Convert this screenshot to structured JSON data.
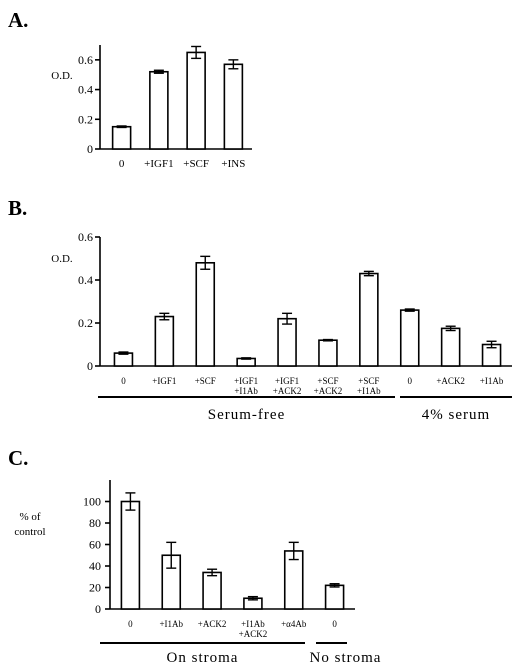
{
  "chart_data": [
    {
      "panel": "A.",
      "type": "bar",
      "ylabel": "O.D.",
      "ylim": [
        0,
        0.7
      ],
      "yticks": [
        "0",
        "0.2",
        "0.4",
        "0.6"
      ],
      "categories": [
        [
          "0"
        ],
        [
          "+IGF1"
        ],
        [
          "+SCF"
        ],
        [
          "+INS"
        ]
      ],
      "values": [
        0.15,
        0.52,
        0.65,
        0.57
      ],
      "errors": [
        0.005,
        0.01,
        0.04,
        0.03
      ],
      "groups": []
    },
    {
      "panel": "B.",
      "type": "bar",
      "ylabel": "O.D.",
      "ylim": [
        0,
        0.6
      ],
      "yticks": [
        "0",
        "0.2",
        "0.4",
        "0.6"
      ],
      "categories": [
        [
          "0"
        ],
        [
          "+IGF1"
        ],
        [
          "+SCF"
        ],
        [
          "+IGF1",
          "+I1Ab"
        ],
        [
          "+IGF1",
          "+ACK2"
        ],
        [
          "+SCF",
          "+ACK2"
        ],
        [
          "+SCF",
          "+I1Ab"
        ],
        [
          "0"
        ],
        [
          "+ACK2"
        ],
        [
          "+I1Ab"
        ]
      ],
      "values": [
        0.06,
        0.23,
        0.48,
        0.035,
        0.22,
        0.12,
        0.43,
        0.26,
        0.175,
        0.1
      ],
      "errors": [
        0.005,
        0.015,
        0.03,
        0.003,
        0.025,
        0.003,
        0.01,
        0.005,
        0.01,
        0.015
      ],
      "groups": [
        {
          "label": "Serum-free",
          "from": 0,
          "to": 6
        },
        {
          "label": "4% serum",
          "from": 7,
          "to": 9
        }
      ]
    },
    {
      "panel": "C.",
      "type": "bar",
      "ylabel": "% of control",
      "ylim": [
        0,
        120
      ],
      "yticks": [
        "0",
        "20",
        "40",
        "60",
        "80",
        "100"
      ],
      "categories": [
        [
          "0"
        ],
        [
          "+I1Ab"
        ],
        [
          "+ACK2"
        ],
        [
          "+I1Ab",
          "+ACK2"
        ],
        [
          "+α4Ab"
        ],
        [
          "0"
        ]
      ],
      "values": [
        100,
        50,
        34,
        10,
        54,
        22
      ],
      "errors": [
        8,
        12,
        3,
        1.5,
        8,
        1.5
      ],
      "groups": [
        {
          "label": "On stroma",
          "from": 0,
          "to": 4
        },
        {
          "label": "No stroma",
          "from": 5,
          "to": 5
        }
      ]
    }
  ]
}
